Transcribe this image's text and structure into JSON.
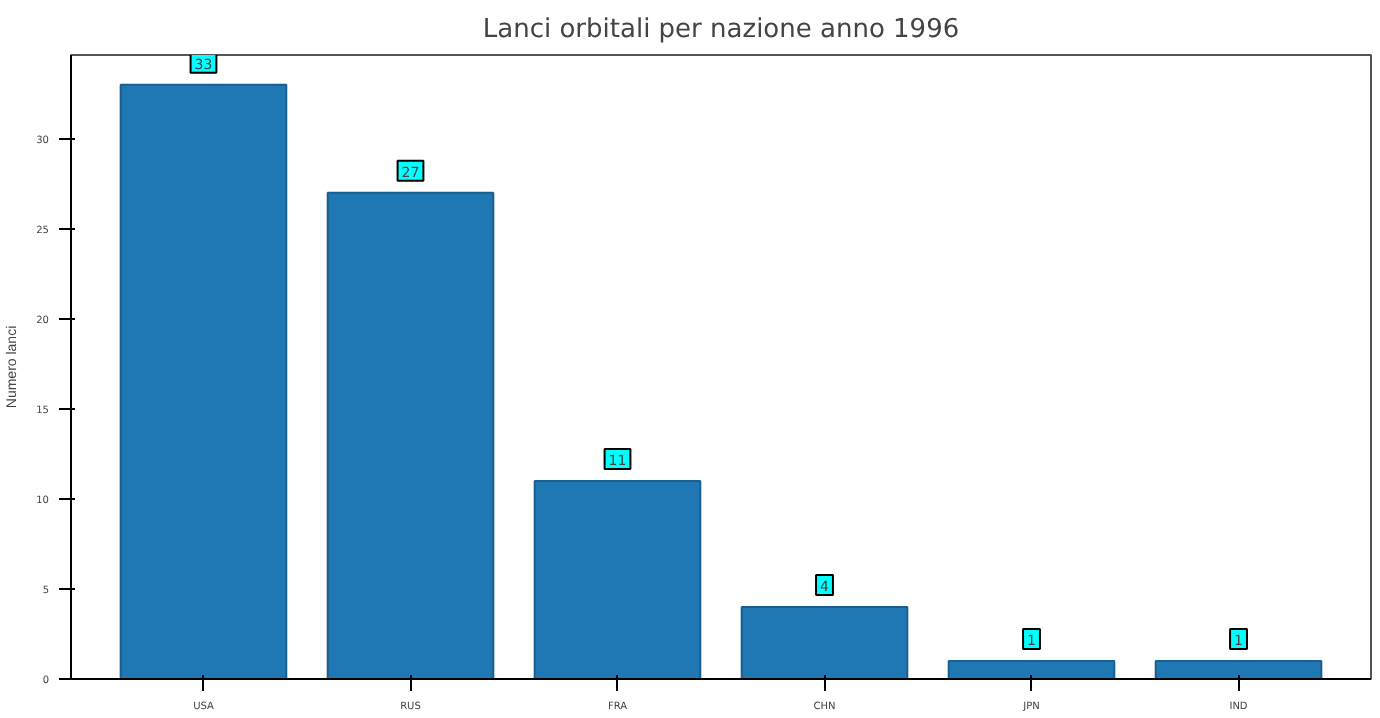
{
  "chart_data": {
    "type": "bar",
    "title": "Lanci orbitali per nazione anno 1996",
    "ylabel": "Numero lanci",
    "categories": [
      "USA",
      "RUS",
      "FRA",
      "CHN",
      "JPN",
      "IND"
    ],
    "values": [
      33,
      27,
      11,
      4,
      1,
      1
    ],
    "color": "#1f77b4",
    "ylim": [
      0,
      34.65
    ],
    "yticks": [
      0,
      5,
      10,
      15,
      20,
      25,
      30
    ],
    "grid": false,
    "data_labels": true
  }
}
